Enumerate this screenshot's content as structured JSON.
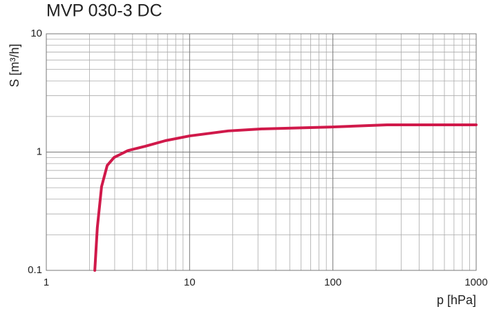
{
  "chart_data": {
    "type": "line",
    "title": "MVP 030-3 DC",
    "x_label": "p [hPa]",
    "y_label": "S [m³/h]",
    "x_log": true,
    "y_log": true,
    "grid": true,
    "minor_grid": true,
    "xlim": [
      1,
      1000
    ],
    "ylim": [
      0.1,
      10
    ],
    "xticks": [
      1,
      10,
      100,
      1000
    ],
    "yticks": [
      0.1,
      1,
      10
    ],
    "x": [
      2.18,
      2.27,
      2.43,
      2.66,
      2.97,
      3.71,
      4.9,
      6.8,
      10,
      18.6,
      32,
      98,
      239,
      465,
      1000
    ],
    "series": [
      {
        "color": "#d0194a",
        "values": [
          0.1,
          0.23,
          0.51,
          0.77,
          0.9,
          1.03,
          1.12,
          1.25,
          1.37,
          1.51,
          1.57,
          1.63,
          1.7,
          1.7,
          1.7
        ]
      }
    ]
  }
}
